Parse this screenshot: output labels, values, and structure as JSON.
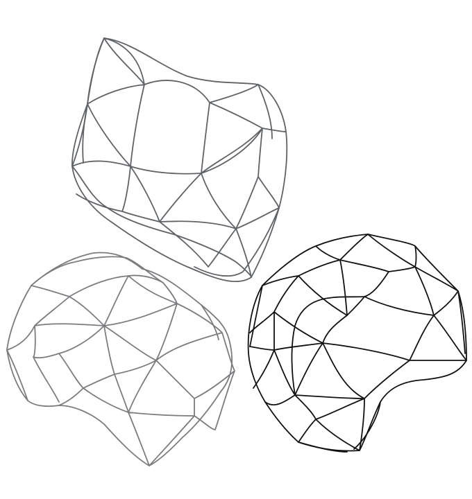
{
  "scene": {
    "background": "#ffffff",
    "shapes": [
      {
        "name": "top-wireframe-blob",
        "stroke": "#5f6266"
      },
      {
        "name": "bottom-left-wireframe-blob",
        "stroke": "#7a7c7f"
      },
      {
        "name": "bottom-right-wireframe-blob",
        "stroke": "#111111"
      }
    ]
  }
}
